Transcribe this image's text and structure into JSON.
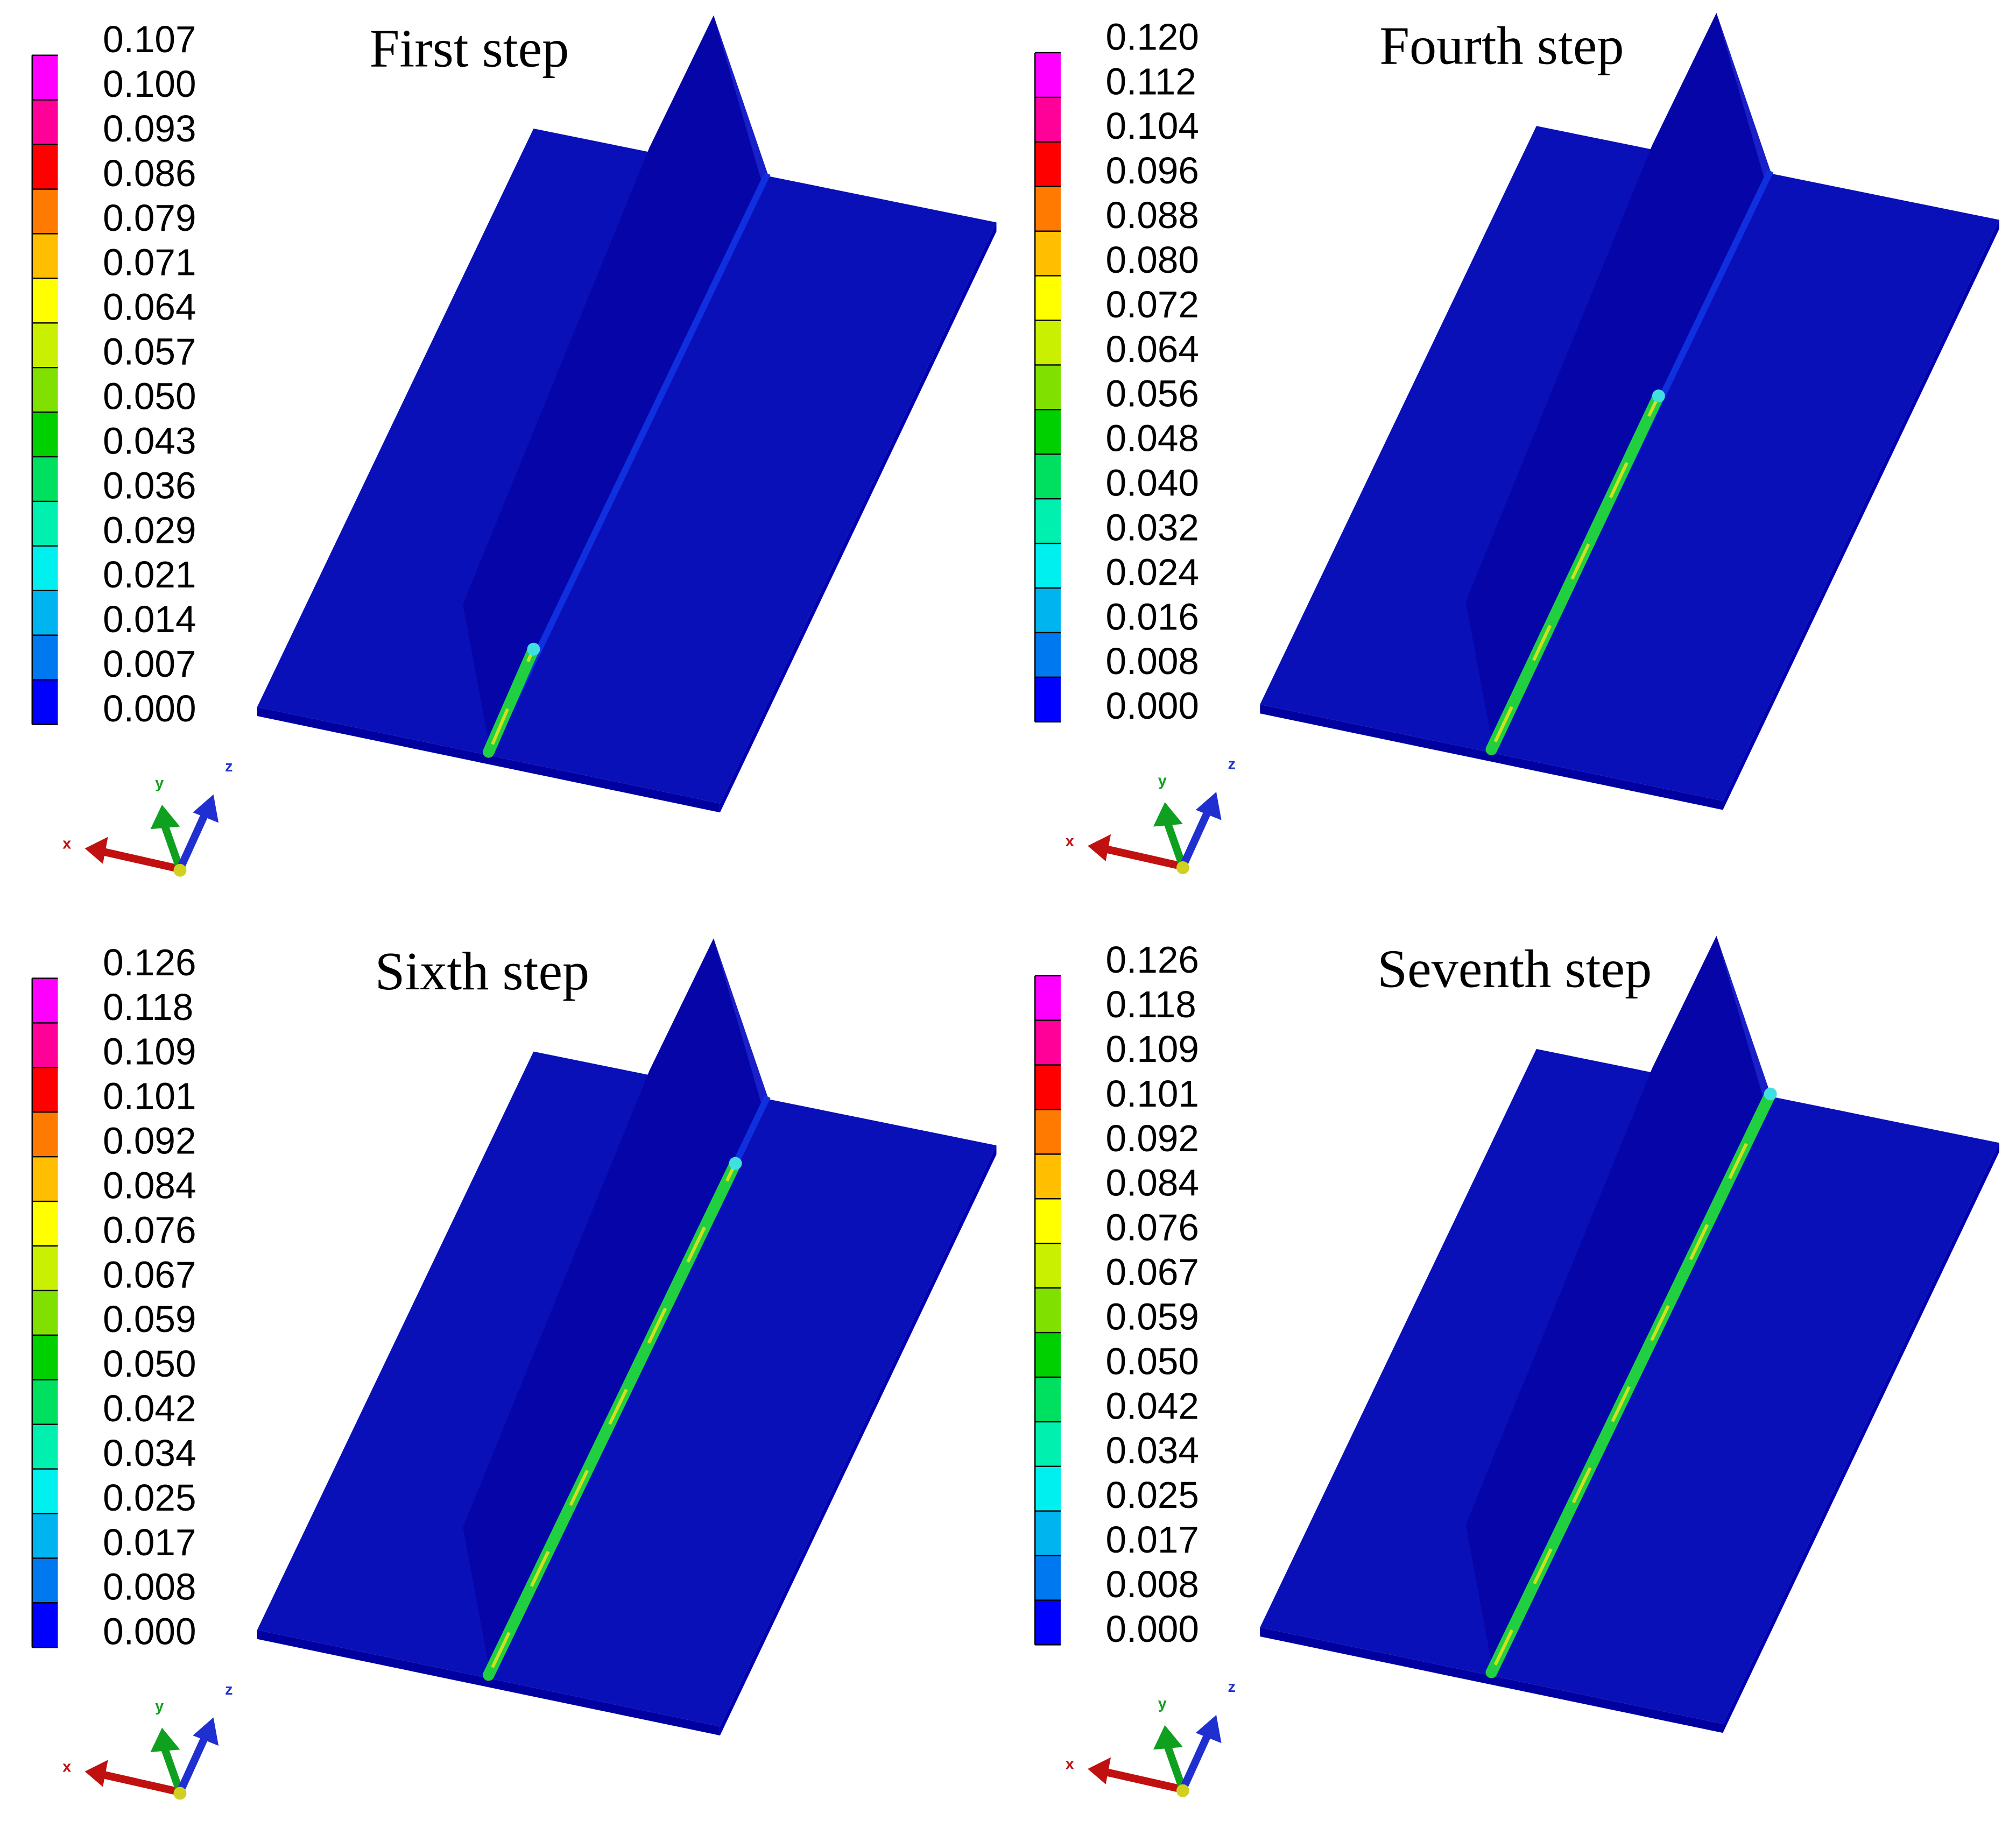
{
  "panels": [
    {
      "title": "First step",
      "legend": [
        "0.107",
        "0.100",
        "0.093",
        "0.086",
        "0.079",
        "0.071",
        "0.064",
        "0.057",
        "0.050",
        "0.043",
        "0.036",
        "0.029",
        "0.021",
        "0.014",
        "0.007",
        "0.000"
      ],
      "axes": {
        "x": "x",
        "y": "y",
        "z": "z"
      }
    },
    {
      "title": "Fourth step",
      "legend": [
        "0.120",
        "0.112",
        "0.104",
        "0.096",
        "0.088",
        "0.080",
        "0.072",
        "0.064",
        "0.056",
        "0.048",
        "0.040",
        "0.032",
        "0.024",
        "0.016",
        "0.008",
        "0.000"
      ],
      "axes": {
        "x": "x",
        "y": "y",
        "z": "z"
      }
    },
    {
      "title": "Sixth step",
      "legend": [
        "0.126",
        "0.118",
        "0.109",
        "0.101",
        "0.092",
        "0.084",
        "0.076",
        "0.067",
        "0.059",
        "0.050",
        "0.042",
        "0.034",
        "0.025",
        "0.017",
        "0.008",
        "0.000"
      ],
      "axes": {
        "x": "x",
        "y": "y",
        "z": "z"
      }
    },
    {
      "title": "Seventh step",
      "legend": [
        "0.126",
        "0.118",
        "0.109",
        "0.101",
        "0.092",
        "0.084",
        "0.076",
        "0.067",
        "0.059",
        "0.050",
        "0.042",
        "0.034",
        "0.025",
        "0.017",
        "0.008",
        "0.000"
      ],
      "axes": {
        "x": "x",
        "y": "y",
        "z": "z"
      }
    }
  ]
}
